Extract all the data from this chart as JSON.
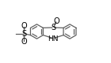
{
  "bg_color": "#ffffff",
  "bond_color": "#606060",
  "text_color": "#000000",
  "figsize": [
    1.4,
    0.8
  ],
  "dpi": 100,
  "r": 0.115,
  "cxA": 0.35,
  "cyA": 0.5,
  "cxB": 0.72,
  "cyB": 0.5,
  "S_bridge_label": "S",
  "O_bridge_label": "O",
  "NH_label": "HN",
  "S_sulfone_label": "S",
  "O1_sulfone_label": "O",
  "O2_sulfone_label": "O",
  "methyl_label": "/"
}
